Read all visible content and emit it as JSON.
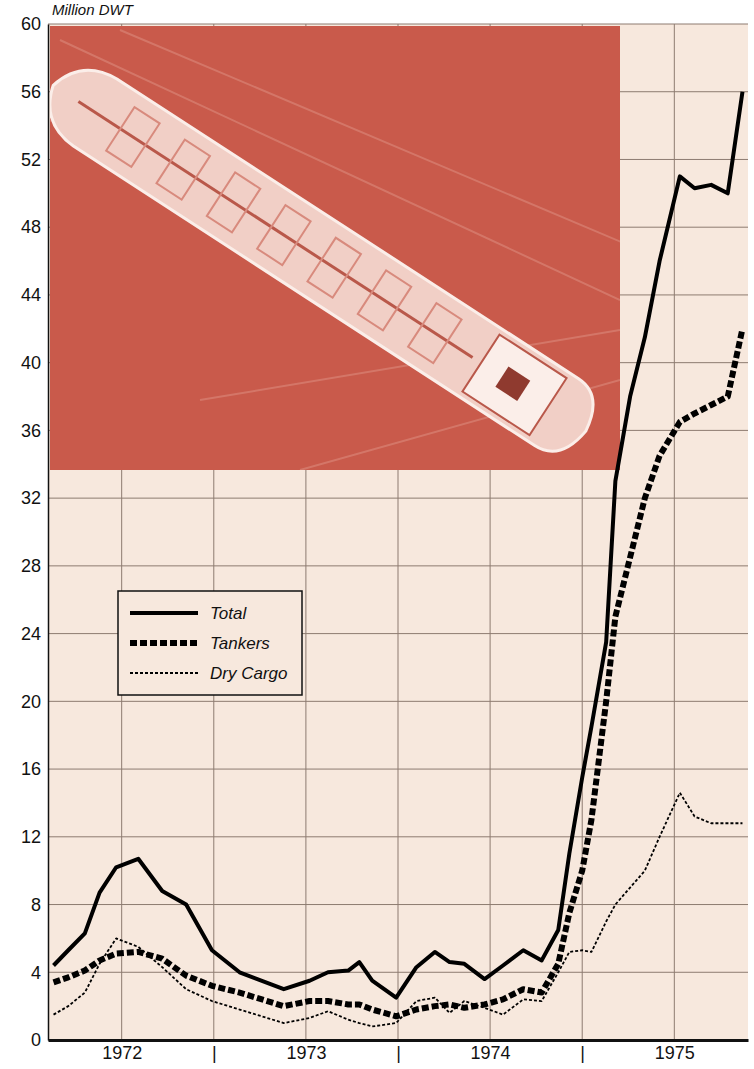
{
  "chart_data": {
    "type": "line",
    "ylabel": "Million DWT",
    "x": [
      1972.13,
      1972.21,
      1972.3,
      1972.38,
      1972.47,
      1972.59,
      1972.72,
      1972.85,
      1972.99,
      1973.14,
      1973.38,
      1973.52,
      1973.62,
      1973.73,
      1973.79,
      1973.86,
      1973.99,
      1974.1,
      1974.2,
      1974.28,
      1974.36,
      1974.47,
      1974.57,
      1974.68,
      1974.78,
      1974.87,
      1974.93,
      1975.0,
      1975.05,
      1975.13,
      1975.18,
      1975.26,
      1975.34,
      1975.42,
      1975.53,
      1975.61,
      1975.7,
      1975.79,
      1975.87
    ],
    "series": [
      {
        "name": "Total",
        "color": "#000000",
        "line_style": "solid",
        "values": [
          4.4,
          5.3,
          6.3,
          8.7,
          10.2,
          10.7,
          8.8,
          8.0,
          5.3,
          4.0,
          3.0,
          3.5,
          4.0,
          4.1,
          4.6,
          3.5,
          2.5,
          4.3,
          5.2,
          4.6,
          4.5,
          3.6,
          4.4,
          5.3,
          4.7,
          6.5,
          11.0,
          15.5,
          18.5,
          23.5,
          33.0,
          38.0,
          41.5,
          46.0,
          51.0,
          50.3,
          50.5,
          50.0,
          56.0
        ]
      },
      {
        "name": "Tankers",
        "color": "#000000",
        "line_style": "dashed",
        "values": [
          3.4,
          3.7,
          4.1,
          4.7,
          5.1,
          5.2,
          4.8,
          3.8,
          3.2,
          2.8,
          2.0,
          2.3,
          2.3,
          2.1,
          2.1,
          1.8,
          1.4,
          1.8,
          2.0,
          2.1,
          1.9,
          2.1,
          2.4,
          3.0,
          2.8,
          4.5,
          7.5,
          10.0,
          13.0,
          20.0,
          25.0,
          28.5,
          32.0,
          34.5,
          36.5,
          37.0,
          37.5,
          38.0,
          42.0
        ]
      },
      {
        "name": "Dry Cargo",
        "color": "#000000",
        "line_style": "dotted",
        "values": [
          1.5,
          2.0,
          2.8,
          4.5,
          6.0,
          5.5,
          4.3,
          3.0,
          2.3,
          1.8,
          1.0,
          1.3,
          1.7,
          1.2,
          1.0,
          0.8,
          1.0,
          2.3,
          2.5,
          1.6,
          2.3,
          1.9,
          1.5,
          2.4,
          2.3,
          4.0,
          5.2,
          5.3,
          5.2,
          7.0,
          8.0,
          9.0,
          10.0,
          12.0,
          14.6,
          13.2,
          12.8,
          12.8,
          12.8
        ]
      }
    ],
    "xlim": [
      1972.1,
      1975.9
    ],
    "xticks": [
      {
        "value": 1972.5,
        "label": "1972"
      },
      {
        "value": 1973,
        "label": "|"
      },
      {
        "value": 1973.5,
        "label": "1973"
      },
      {
        "value": 1974,
        "label": "|"
      },
      {
        "value": 1974.5,
        "label": "1974"
      },
      {
        "value": 1975,
        "label": "|"
      },
      {
        "value": 1975.5,
        "label": "1975"
      }
    ],
    "ylim": [
      0,
      60
    ],
    "yticks": [
      0,
      4,
      8,
      12,
      16,
      20,
      24,
      28,
      32,
      36,
      40,
      44,
      48,
      52,
      56,
      60
    ],
    "grid": true,
    "legend": "bottom-left"
  }
}
